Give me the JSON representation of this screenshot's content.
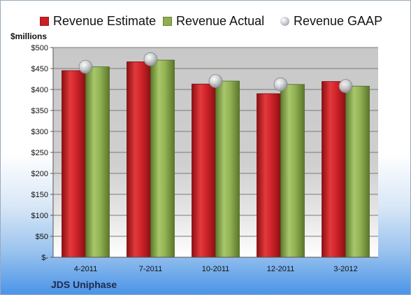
{
  "company": "JDS Uniphase",
  "unit_label": "$millions",
  "legend": [
    {
      "label": "Revenue Estimate",
      "color": "#cc1f24",
      "shape": "square"
    },
    {
      "label": "Revenue Actual",
      "color": "#8fae4e",
      "shape": "square"
    },
    {
      "label": "Revenue GAAP",
      "color": "#bfc3c9",
      "shape": "circle"
    }
  ],
  "chart_data": {
    "type": "bar",
    "categories": [
      "4-2011",
      "7-2011",
      "10-2011",
      "12-2011",
      "3-2012"
    ],
    "series": [
      {
        "name": "Revenue Estimate",
        "type": "bar",
        "color": "#cc1f24",
        "values": [
          445,
          466,
          413,
          390,
          419
        ]
      },
      {
        "name": "Revenue Actual",
        "type": "bar",
        "color": "#8fae4e",
        "values": [
          454,
          470,
          420,
          412,
          408
        ]
      },
      {
        "name": "Revenue GAAP",
        "type": "marker",
        "color": "#bfc3c9",
        "values": [
          454,
          472,
          420,
          412,
          408
        ]
      }
    ],
    "y_ticks": [
      "$-",
      "$50",
      "$100",
      "$150",
      "$200",
      "$250",
      "$300",
      "$350",
      "$400",
      "$450",
      "$500"
    ],
    "ylim": [
      0,
      500
    ],
    "ylabel": "$millions",
    "grid": true,
    "legend_position": "top"
  }
}
